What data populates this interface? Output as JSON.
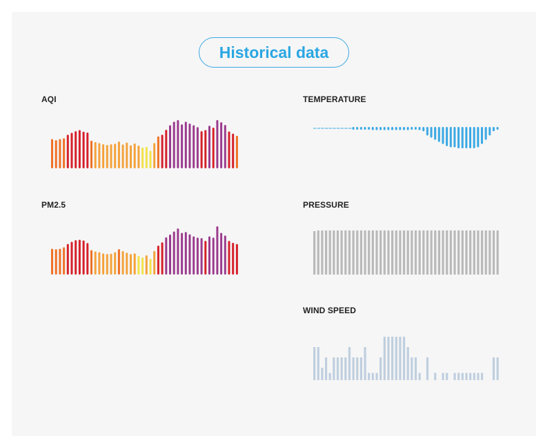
{
  "title": "Historical data",
  "colors": {
    "aqi_good": "#f2e34a",
    "aqi_moderate": "#f4a23a",
    "aqi_sensitive": "#f07126",
    "aqi_unhealthy": "#d6202a",
    "aqi_very_unhealthy": "#9b3b8e",
    "temperature": "#3aa9e4",
    "pressure": "#b9b9b9",
    "wind": "#bfcfdf"
  },
  "chart_data": [
    {
      "type": "bar",
      "title": "AQI",
      "values": [
        108,
        104,
        108,
        111,
        124,
        131,
        137,
        141,
        135,
        132,
        102,
        97,
        93,
        89,
        86,
        89,
        91,
        99,
        88,
        95,
        85,
        92,
        84,
        77,
        79,
        65,
        93,
        118,
        124,
        142,
        159,
        172,
        178,
        162,
        172,
        165,
        159,
        152,
        137,
        141,
        157,
        150,
        178,
        170,
        160,
        136,
        128,
        120
      ]
    },
    {
      "type": "bar",
      "title": "PM2.5",
      "values": [
        110,
        108,
        110,
        116,
        130,
        139,
        146,
        148,
        145,
        134,
        104,
        98,
        95,
        90,
        88,
        89,
        95,
        108,
        100,
        93,
        87,
        90,
        80,
        73,
        82,
        67,
        100,
        123,
        137,
        158,
        170,
        183,
        196,
        177,
        181,
        171,
        162,
        157,
        155,
        143,
        162,
        157,
        205,
        177,
        166,
        143,
        135,
        130
      ]
    },
    {
      "type": "bar",
      "title": "TEMPERATURE",
      "values": [
        1,
        1,
        1,
        1,
        1,
        1,
        1,
        1,
        1,
        1,
        0.5,
        -0.5,
        -1,
        -1,
        -1,
        -1.5,
        -1.5,
        -1.5,
        -1.5,
        -1.5,
        -1.5,
        -1.5,
        -1.5,
        -1.5,
        -1.5,
        -1,
        -1,
        -1.5,
        -2,
        -4,
        -5,
        -6,
        -7,
        -8,
        -9,
        -9.5,
        -9.5,
        -10,
        -10,
        -10,
        -10,
        -10,
        -9.5,
        -8,
        -6,
        -4,
        -2,
        -1
      ]
    },
    {
      "type": "bar",
      "title": "PRESSURE",
      "values": [
        1012,
        1013,
        1013,
        1013,
        1013,
        1013,
        1013,
        1013,
        1013,
        1013,
        1013,
        1013,
        1013,
        1013,
        1013,
        1013,
        1013,
        1013,
        1013,
        1013,
        1013,
        1013,
        1013,
        1013,
        1013,
        1013,
        1013,
        1013,
        1013,
        1013,
        1013,
        1013,
        1013,
        1013,
        1013,
        1013,
        1013,
        1013,
        1013,
        1013,
        1013,
        1013,
        1013,
        1013,
        1013,
        1013,
        1013,
        1013
      ]
    },
    {
      "type": "bar",
      "title": "WIND SPEED",
      "values": [
        6,
        6,
        2,
        4,
        1,
        4,
        4,
        4,
        4,
        6,
        4,
        4,
        4,
        6,
        1,
        1,
        1,
        4,
        8,
        8,
        8,
        8,
        8,
        8,
        6,
        4,
        4,
        1,
        0,
        4,
        0,
        1,
        0,
        1,
        1,
        0,
        1,
        1,
        1,
        1,
        1,
        1,
        1,
        1,
        0,
        0,
        4,
        4
      ]
    }
  ]
}
